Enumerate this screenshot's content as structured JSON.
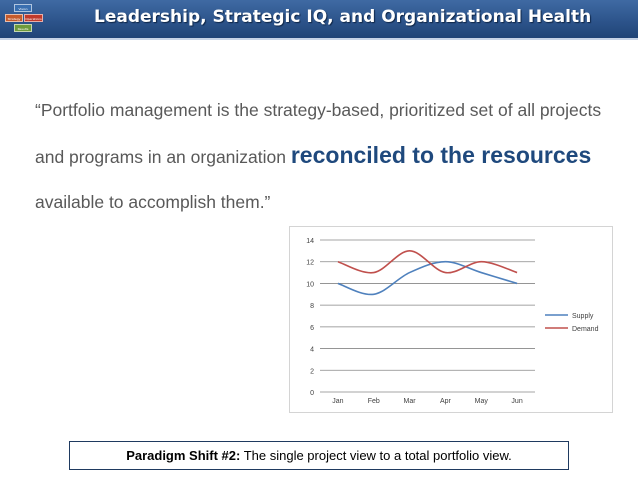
{
  "header": {
    "title": "Leadership, Strategic IQ, and Organizational Health",
    "logo_labels": [
      "Vision",
      "Strategy",
      "Operations",
      "Results"
    ]
  },
  "quote": {
    "part1": "“Portfolio management is the strategy-based, prioritized set of all projects and programs in an organization ",
    "emphasis1": "reconciled to the resources",
    "part2": " available to accomplish them.”"
  },
  "callout": {
    "bold": "Paradigm Shift #2:",
    "text": " The single project view to a total portfolio view."
  },
  "colors": {
    "title_bar": "#2c538a",
    "emphasis": "#1f497d",
    "supply": "#4f81bd",
    "demand": "#c0504d"
  },
  "chart_data": {
    "type": "line",
    "categories": [
      "Jan",
      "Feb",
      "Mar",
      "Apr",
      "May",
      "Jun"
    ],
    "series": [
      {
        "name": "Supply",
        "values": [
          10,
          9,
          11,
          12,
          11,
          10
        ],
        "color": "#4f81bd"
      },
      {
        "name": "Demand",
        "values": [
          12,
          11,
          13,
          11,
          12,
          11
        ],
        "color": "#c0504d"
      }
    ],
    "ylim": [
      0,
      14
    ],
    "yticks": [
      "0",
      "2",
      "4",
      "6",
      "8",
      "10",
      "12",
      "14"
    ],
    "smooth": true,
    "grid": true,
    "legend": "right"
  }
}
